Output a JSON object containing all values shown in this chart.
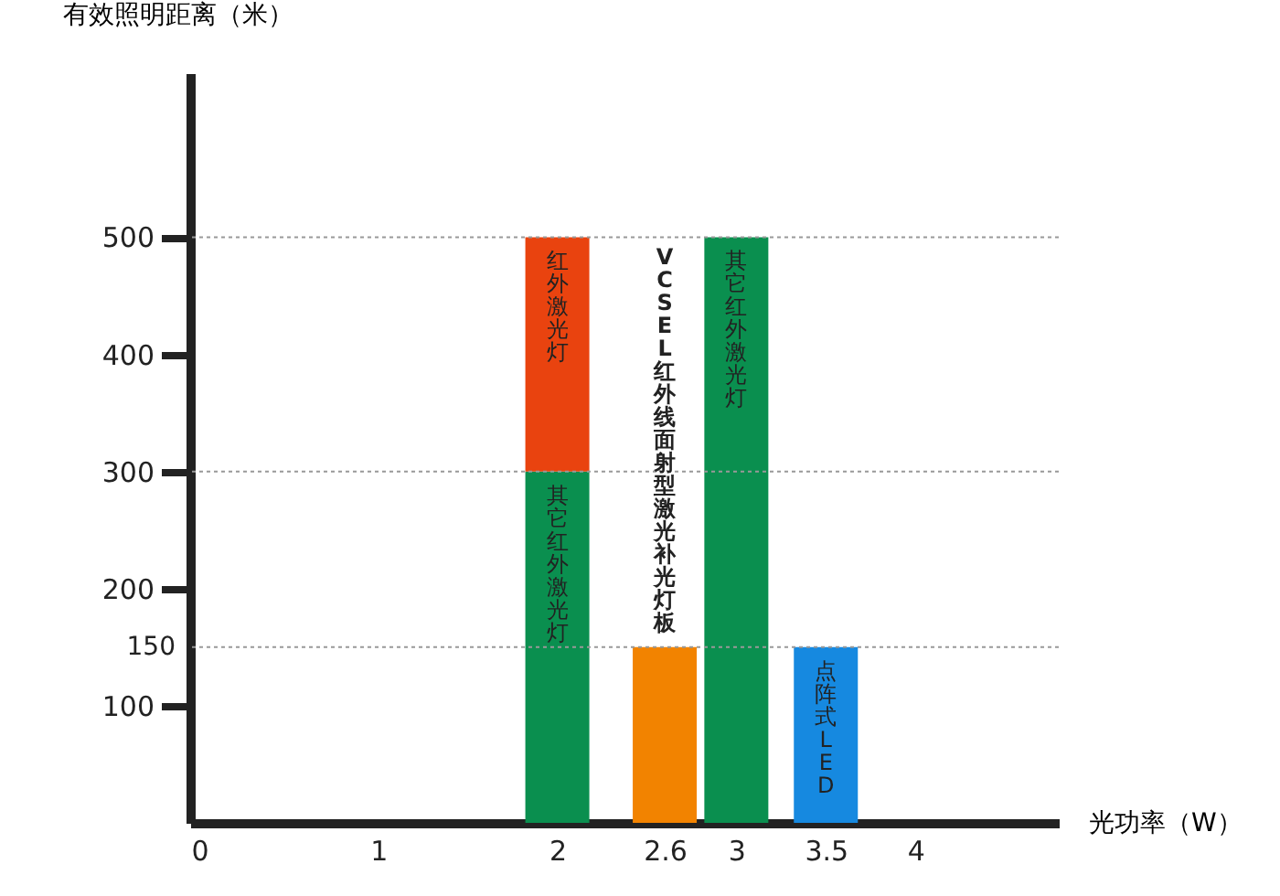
{
  "chart_data": {
    "type": "bar",
    "xlabel": "光功率（W）",
    "ylabel": "有效照明距离（米）",
    "stacked": true,
    "xlim": [
      0,
      4.75
    ],
    "ylim": [
      0,
      640
    ],
    "xticks": [
      0,
      1,
      2,
      2.6,
      3,
      3.5,
      4
    ],
    "yticks": [
      100,
      200,
      300,
      400,
      500
    ],
    "x": [
      2,
      2.6,
      3,
      3.5
    ],
    "series": [
      {
        "name": "其它红外激光灯",
        "color": "#0a8f4f",
        "values": [
          300,
          null,
          500,
          null
        ]
      },
      {
        "name": "红外激光灯",
        "color": "#e9430f",
        "values": [
          200,
          null,
          null,
          null
        ]
      },
      {
        "name": "VCSEL红外线面射型激光补光灯板",
        "color": "#f28300",
        "values": [
          null,
          150,
          null,
          null
        ]
      },
      {
        "name": "点阵式LED",
        "color": "#1689e0",
        "values": [
          null,
          null,
          null,
          150
        ]
      }
    ],
    "ref_lines": [
      {
        "axis": "y",
        "value": 500,
        "color": "#999999",
        "line_style": "dotted"
      },
      {
        "axis": "y",
        "value": 300,
        "color": "#999999",
        "line_style": "dotted"
      },
      {
        "axis": "y",
        "value": 150,
        "label": "150",
        "color": "#999999",
        "line_style": "dotted"
      }
    ],
    "annotations": [
      {
        "text": "其它红外激光灯",
        "x": 3,
        "y": 500
      }
    ],
    "grid": false
  }
}
